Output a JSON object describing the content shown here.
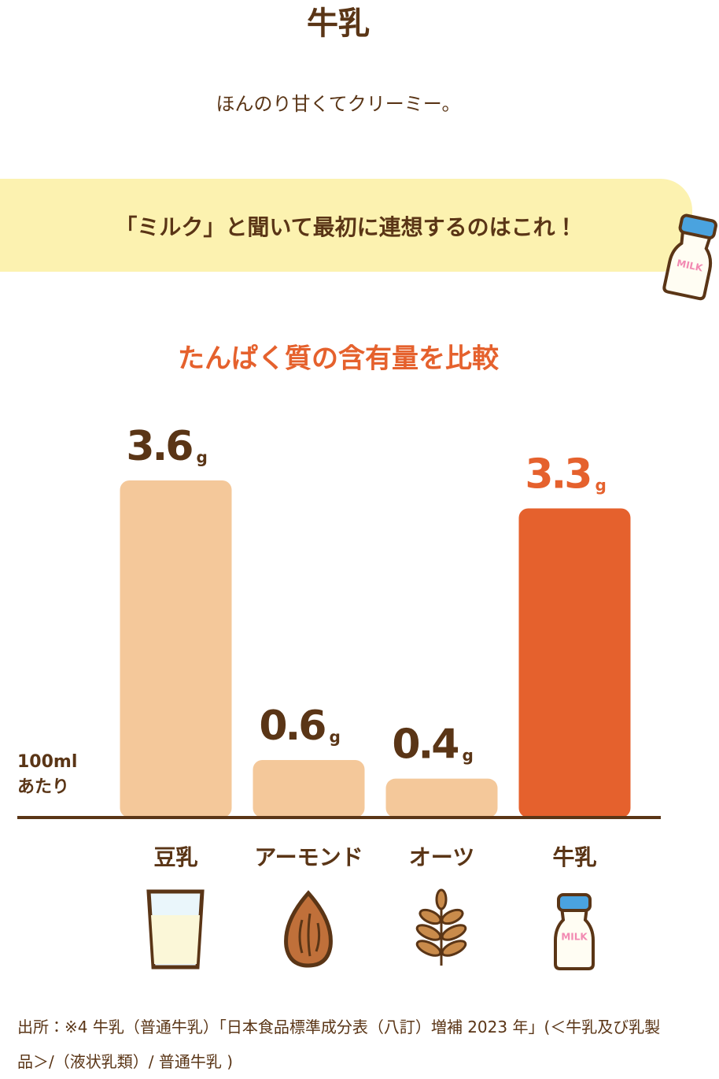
{
  "title": "牛乳",
  "subtitle": "ほんのり甘くてクリーミー。",
  "banner": "「ミルク」と聞いて最初に連想するのはこれ！",
  "icon_text": "MILK",
  "chart_data": {
    "type": "bar",
    "title": "たんぱく質の含有量を比較",
    "basis": [
      "100ml",
      "あたり"
    ],
    "unit": "g",
    "categories": [
      "豆乳",
      "アーモンド",
      "オーツ",
      "牛乳"
    ],
    "values": [
      3.6,
      0.6,
      0.4,
      3.3
    ],
    "colors": [
      "#f4c89a",
      "#f4c89a",
      "#f4c89a",
      "#e5612d"
    ],
    "label_colors": [
      "#5a3516",
      "#5a3516",
      "#5a3516",
      "#e5612d"
    ]
  },
  "source": "出所：※4 牛乳（普通牛乳）「日本食品標準成分表（八訂）増補 2023 年」(＜牛乳及び乳製品＞/（液状乳類）/ 普通牛乳 )"
}
